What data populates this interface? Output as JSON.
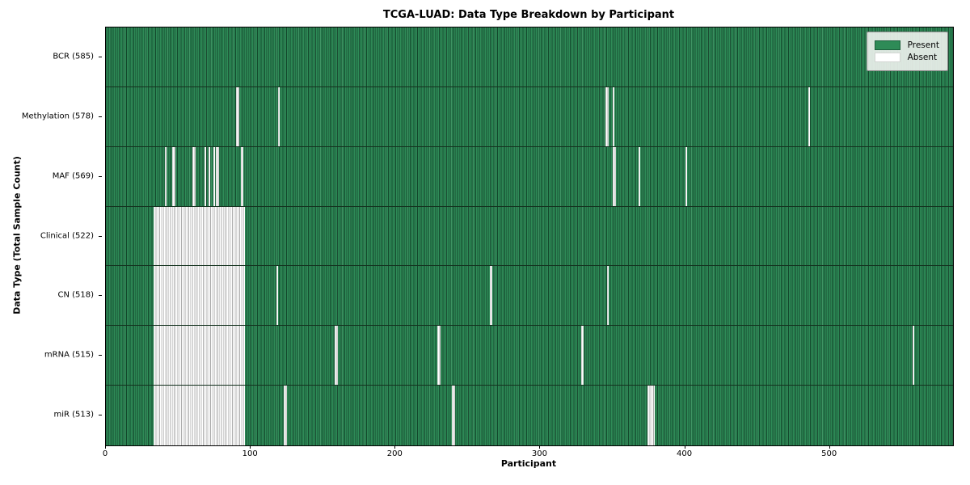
{
  "title": "TCGA-LUAD: Data Type Breakdown by Participant",
  "xlabel": "Participant",
  "ylabel": "Data Type (Total Sample Count)",
  "legend": {
    "present_label": "Present",
    "absent_label": "Absent"
  },
  "colors": {
    "present": "#2e8b57",
    "present_edge": "#1c5e3c",
    "absent": "#ffffff",
    "absent_edge": "#ababab"
  },
  "chart_data": {
    "type": "heatmap",
    "title": "TCGA-LUAD: Data Type Breakdown by Participant",
    "xlabel": "Participant",
    "ylabel": "Data Type (Total Sample Count)",
    "x_ticks": [
      0,
      100,
      200,
      300,
      400,
      500
    ],
    "x_max": 585,
    "n_participants": 585,
    "legend_position": "upper right",
    "rows": [
      {
        "label": "BCR (585)",
        "data_type": "BCR",
        "sample_count": 585,
        "absent_segments": []
      },
      {
        "label": "Methylation (578)",
        "data_type": "Methylation",
        "sample_count": 578,
        "absent_segments": [
          [
            90,
            2
          ],
          [
            119,
            1
          ],
          [
            345,
            2
          ],
          [
            350,
            1
          ],
          [
            485,
            1
          ]
        ]
      },
      {
        "label": "MAF (569)",
        "data_type": "MAF",
        "sample_count": 569,
        "absent_segments": [
          [
            41,
            1
          ],
          [
            46,
            2
          ],
          [
            60,
            2
          ],
          [
            68,
            1
          ],
          [
            71,
            1
          ],
          [
            74,
            1
          ],
          [
            76,
            2
          ],
          [
            93,
            2
          ],
          [
            350,
            2
          ],
          [
            368,
            1
          ],
          [
            400,
            1
          ]
        ]
      },
      {
        "label": "Clinical (522)",
        "data_type": "Clinical",
        "sample_count": 522,
        "absent_segments": [
          [
            33,
            63
          ]
        ]
      },
      {
        "label": "CN (518)",
        "data_type": "CN",
        "sample_count": 518,
        "absent_segments": [
          [
            33,
            63
          ],
          [
            118,
            1
          ],
          [
            265,
            2
          ],
          [
            346,
            1
          ]
        ]
      },
      {
        "label": "mRNA (515)",
        "data_type": "mRNA",
        "sample_count": 515,
        "absent_segments": [
          [
            33,
            63
          ],
          [
            158,
            2
          ],
          [
            229,
            2
          ],
          [
            328,
            2
          ],
          [
            557,
            1
          ]
        ]
      },
      {
        "label": "miR (513)",
        "data_type": "miR",
        "sample_count": 513,
        "absent_segments": [
          [
            33,
            63
          ],
          [
            123,
            2
          ],
          [
            239,
            2
          ],
          [
            374,
            5
          ]
        ]
      }
    ]
  }
}
